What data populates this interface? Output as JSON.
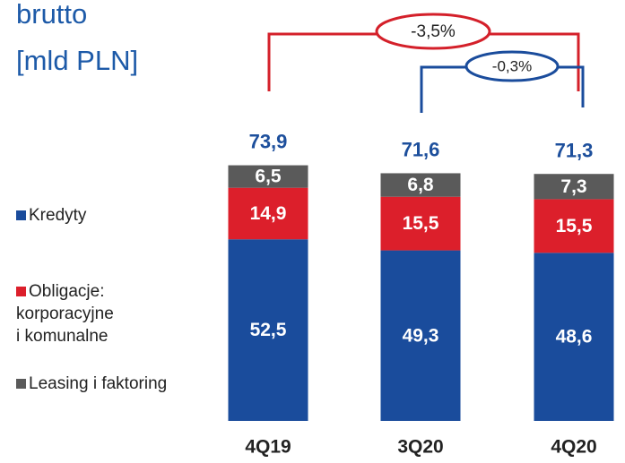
{
  "chart_data": {
    "type": "stacked_bar",
    "title_lines": [
      "brutto",
      "[mld PLN]"
    ],
    "categories": [
      "4Q19",
      "3Q20",
      "4Q20"
    ],
    "series": [
      {
        "name": "Kredyty",
        "color": "#1a4c9c",
        "values": [
          52.5,
          49.3,
          48.6
        ],
        "value_labels": [
          "52,5",
          "49,3",
          "48,6"
        ]
      },
      {
        "name": "Obligacje:\nkorporacyjne\ni komunalne",
        "color": "#dc1f2b",
        "values": [
          14.9,
          15.5,
          15.5
        ],
        "value_labels": [
          "14,9",
          "15,5",
          "15,5"
        ]
      },
      {
        "name": "Leasing i faktoring",
        "color": "#5a5a5a",
        "values": [
          6.5,
          6.8,
          7.3
        ],
        "value_labels": [
          "6,5",
          "6,8",
          "7,3"
        ]
      }
    ],
    "totals": {
      "values": [
        73.9,
        71.6,
        71.3
      ],
      "value_labels": [
        "73,9",
        "71,6",
        "71,3"
      ]
    },
    "changes": [
      "-3,5%",
      "-0,3%"
    ],
    "ylim": [
      0,
      80
    ]
  }
}
